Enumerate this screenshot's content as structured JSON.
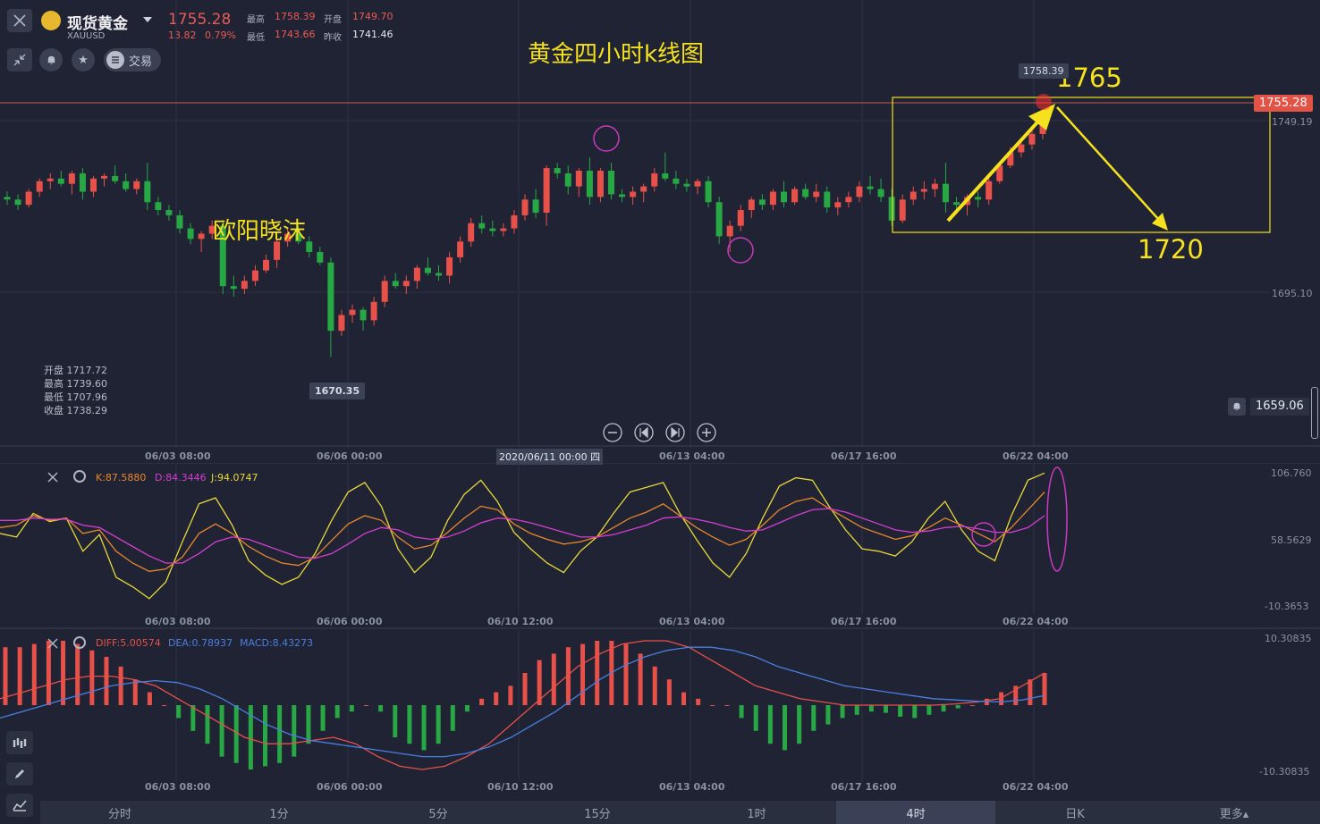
{
  "header": {
    "symbol_name": "现货黄金",
    "symbol_code": "XAUUSD",
    "price": "1755.28",
    "change": "13.82",
    "change_pct": "0.79%",
    "high_label": "最高",
    "high": "1758.39",
    "open_label": "开盘",
    "open": "1749.70",
    "low_label": "最低",
    "low": "1743.66",
    "prev_close_label": "昨收",
    "prev_close": "1741.46",
    "trade_label": "交易"
  },
  "annotations": {
    "title": "黄金四小时k线图",
    "author": "欧阳晓沫",
    "target_up": "1765",
    "target_down": "1720",
    "max_tag": "1758.39",
    "min_tag": "1670.35",
    "price_tag": "1755.28",
    "crosshair_date": "2020/06/11 00:00 四",
    "alert_price": "1659.06"
  },
  "ohlc_panel": {
    "open_label": "开盘",
    "open": "1717.72",
    "high_label": "最高",
    "high": "1739.60",
    "low_label": "最低",
    "low": "1707.96",
    "close_label": "收盘",
    "close": "1738.29"
  },
  "main_axis": {
    "ticks": [
      "1749.19",
      "1695.10"
    ]
  },
  "x_ticks_main": [
    "06/03 08:00",
    "06/06 00:00",
    "06/13 04:00",
    "06/17 16:00",
    "06/22 04:00"
  ],
  "x_ticks_sub": [
    "06/03 08:00",
    "06/06 00:00",
    "06/10 12:00",
    "06/13 04:00",
    "06/17 16:00",
    "06/22 04:00"
  ],
  "kdj": {
    "k_label": "K:87.5880",
    "d_label": "D:84.3446",
    "j_label": "J:94.0747",
    "axis": [
      "106.760",
      "58.5629",
      "-10.3653"
    ]
  },
  "macd": {
    "diff_label": "DIFF:5.00574",
    "dea_label": "DEA:0.78937",
    "macd_label": "MACD:8.43273",
    "axis": [
      "10.30835",
      "-10.30835"
    ]
  },
  "timeframes": [
    "分时",
    "1分",
    "5分",
    "15分",
    "1时",
    "4时",
    "日K",
    "更多▴"
  ],
  "active_timeframe": "4时",
  "colors": {
    "up": "#e8504a",
    "down": "#27a845",
    "bg": "#1f2333",
    "annotation": "#f5e11e",
    "circle": "#c83ac0",
    "k": "#e8872e",
    "d": "#d53fd0",
    "j": "#e8d83a",
    "diff": "#e8504a",
    "dea": "#4a7fe0"
  },
  "chart_data": {
    "type": "candlestick",
    "ylim": [
      1659,
      1768
    ],
    "candles": [
      [
        1727,
        1729,
        1724,
        1726
      ],
      [
        1726,
        1728,
        1722,
        1724
      ],
      [
        1724,
        1730,
        1723,
        1729
      ],
      [
        1729,
        1734,
        1727,
        1733
      ],
      [
        1733,
        1736,
        1730,
        1734
      ],
      [
        1734,
        1737,
        1731,
        1732
      ],
      [
        1732,
        1737,
        1728,
        1736
      ],
      [
        1736,
        1738,
        1726,
        1729
      ],
      [
        1729,
        1735,
        1727,
        1734
      ],
      [
        1734,
        1736,
        1731,
        1735
      ],
      [
        1735,
        1739,
        1732,
        1733
      ],
      [
        1733,
        1736,
        1729,
        1730
      ],
      [
        1730,
        1734,
        1728,
        1733
      ],
      [
        1733,
        1740,
        1722,
        1725
      ],
      [
        1725,
        1727,
        1720,
        1722
      ],
      [
        1722,
        1724,
        1718,
        1720
      ],
      [
        1720,
        1722,
        1713,
        1715
      ],
      [
        1715,
        1717,
        1709,
        1711
      ],
      [
        1711,
        1714,
        1706,
        1713
      ],
      [
        1713,
        1718,
        1711,
        1716
      ],
      [
        1716,
        1718,
        1690,
        1693
      ],
      [
        1693,
        1697,
        1689,
        1692
      ],
      [
        1692,
        1697,
        1690,
        1695
      ],
      [
        1695,
        1701,
        1693,
        1699
      ],
      [
        1699,
        1705,
        1698,
        1703
      ],
      [
        1703,
        1712,
        1700,
        1710
      ],
      [
        1710,
        1715,
        1708,
        1713
      ],
      [
        1713,
        1716,
        1709,
        1710
      ],
      [
        1710,
        1712,
        1704,
        1706
      ],
      [
        1706,
        1708,
        1701,
        1702
      ],
      [
        1702,
        1704,
        1666,
        1676
      ],
      [
        1676,
        1684,
        1674,
        1682
      ],
      [
        1682,
        1686,
        1679,
        1684
      ],
      [
        1684,
        1685,
        1676,
        1680
      ],
      [
        1680,
        1689,
        1678,
        1687
      ],
      [
        1687,
        1697,
        1685,
        1695
      ],
      [
        1695,
        1698,
        1692,
        1693
      ],
      [
        1693,
        1697,
        1690,
        1695
      ],
      [
        1695,
        1701,
        1692,
        1700
      ],
      [
        1700,
        1704,
        1697,
        1698
      ],
      [
        1698,
        1701,
        1695,
        1697
      ],
      [
        1697,
        1706,
        1694,
        1704
      ],
      [
        1704,
        1712,
        1702,
        1710
      ],
      [
        1710,
        1719,
        1708,
        1717
      ],
      [
        1717,
        1720,
        1713,
        1715
      ],
      [
        1715,
        1718,
        1712,
        1714
      ],
      [
        1714,
        1717,
        1712,
        1715
      ],
      [
        1715,
        1722,
        1713,
        1720
      ],
      [
        1720,
        1728,
        1718,
        1726
      ],
      [
        1726,
        1730,
        1719,
        1721
      ],
      [
        1721,
        1739,
        1716,
        1738
      ],
      [
        1738,
        1740,
        1734,
        1736
      ],
      [
        1736,
        1739,
        1728,
        1731
      ],
      [
        1731,
        1738,
        1727,
        1737
      ],
      [
        1737,
        1742,
        1724,
        1727
      ],
      [
        1727,
        1738,
        1725,
        1737
      ],
      [
        1737,
        1740,
        1726,
        1728
      ],
      [
        1728,
        1730,
        1725,
        1727
      ],
      [
        1727,
        1731,
        1724,
        1729
      ],
      [
        1729,
        1732,
        1725,
        1731
      ],
      [
        1731,
        1738,
        1729,
        1736
      ],
      [
        1736,
        1744,
        1733,
        1734
      ],
      [
        1734,
        1737,
        1730,
        1732
      ],
      [
        1732,
        1734,
        1729,
        1731
      ],
      [
        1731,
        1734,
        1728,
        1733
      ],
      [
        1733,
        1735,
        1723,
        1725
      ],
      [
        1725,
        1727,
        1709,
        1712
      ],
      [
        1712,
        1718,
        1706,
        1716
      ],
      [
        1716,
        1724,
        1714,
        1722
      ],
      [
        1722,
        1727,
        1719,
        1726
      ],
      [
        1726,
        1728,
        1722,
        1724
      ],
      [
        1724,
        1730,
        1722,
        1729
      ],
      [
        1729,
        1733,
        1723,
        1725
      ],
      [
        1725,
        1731,
        1724,
        1730
      ],
      [
        1730,
        1732,
        1726,
        1727
      ],
      [
        1727,
        1732,
        1725,
        1729
      ],
      [
        1729,
        1731,
        1721,
        1723
      ],
      [
        1723,
        1727,
        1720,
        1725
      ],
      [
        1725,
        1729,
        1723,
        1727
      ],
      [
        1727,
        1733,
        1725,
        1731
      ],
      [
        1731,
        1735,
        1728,
        1730
      ],
      [
        1730,
        1734,
        1725,
        1727
      ],
      [
        1727,
        1730,
        1716,
        1718
      ],
      [
        1718,
        1728,
        1717,
        1726
      ],
      [
        1726,
        1731,
        1724,
        1729
      ],
      [
        1729,
        1733,
        1726,
        1730
      ],
      [
        1730,
        1734,
        1727,
        1732
      ],
      [
        1732,
        1740,
        1721,
        1725
      ],
      [
        1725,
        1727,
        1722,
        1724
      ],
      [
        1724,
        1728,
        1720,
        1727
      ],
      [
        1727,
        1729,
        1723,
        1726
      ],
      [
        1726,
        1735,
        1724,
        1733
      ],
      [
        1733,
        1740,
        1732,
        1739
      ],
      [
        1739,
        1746,
        1738,
        1744
      ],
      [
        1744,
        1749,
        1742,
        1747
      ],
      [
        1747,
        1754,
        1745,
        1751
      ],
      [
        1751,
        1758,
        1749,
        1755
      ]
    ],
    "kdj": {
      "k": [
        60,
        62,
        70,
        66,
        68,
        55,
        58,
        40,
        30,
        23,
        25,
        35,
        55,
        63,
        55,
        44,
        36,
        30,
        28,
        35,
        49,
        63,
        70,
        66,
        52,
        42,
        45,
        56,
        68,
        78,
        75,
        63,
        55,
        50,
        46,
        48,
        52,
        60,
        68,
        73,
        80,
        70,
        60,
        52,
        45,
        50,
        62,
        75,
        82,
        85,
        76,
        68,
        60,
        55,
        50,
        53,
        60,
        68,
        62,
        55,
        48,
        60,
        75,
        90
      ],
      "d": [
        66,
        66,
        68,
        67,
        67,
        62,
        60,
        52,
        44,
        36,
        30,
        30,
        38,
        48,
        52,
        50,
        45,
        40,
        35,
        34,
        38,
        46,
        55,
        60,
        58,
        52,
        50,
        52,
        57,
        64,
        68,
        67,
        64,
        60,
        56,
        52,
        52,
        54,
        58,
        62,
        68,
        69,
        67,
        64,
        60,
        57,
        58,
        64,
        70,
        75,
        76,
        73,
        68,
        63,
        58,
        56,
        57,
        60,
        61,
        59,
        56,
        56,
        60,
        70
      ],
      "j": [
        55,
        52,
        72,
        65,
        68,
        40,
        54,
        18,
        10,
        0,
        14,
        48,
        80,
        85,
        62,
        32,
        20,
        12,
        18,
        38,
        66,
        90,
        98,
        78,
        42,
        22,
        35,
        66,
        88,
        100,
        82,
        56,
        42,
        30,
        22,
        40,
        52,
        72,
        90,
        94,
        98,
        72,
        50,
        30,
        18,
        38,
        68,
        95,
        102,
        100,
        78,
        58,
        42,
        40,
        36,
        48,
        68,
        82,
        58,
        40,
        32,
        70,
        100,
        106
      ]
    },
    "macd": {
      "hist": [
        9,
        9,
        9.5,
        10,
        10,
        9.5,
        8.5,
        7.5,
        6,
        4,
        2,
        0,
        -2,
        -4,
        -6,
        -8,
        -9,
        -10,
        -9.5,
        -9,
        -8,
        -6,
        -4,
        -2,
        -1,
        0,
        -1,
        -5,
        -6,
        -7,
        -6,
        -4,
        -1,
        1,
        2,
        3,
        5,
        7,
        8,
        9,
        9.5,
        10,
        10,
        9.5,
        8,
        6,
        4,
        2,
        1,
        0,
        0,
        -2,
        -4,
        -6,
        -7,
        -6,
        -4,
        -3,
        -2,
        -1.5,
        -1,
        -1.2,
        -1.8,
        -2,
        -1.5,
        -1,
        -0.5,
        0,
        1,
        2,
        3,
        4,
        5
      ],
      "diff": [
        1,
        2,
        3,
        4,
        4.5,
        4.5,
        4,
        3,
        1,
        -1,
        -3,
        -5,
        -6,
        -6,
        -5.5,
        -5,
        -6,
        -8,
        -9.5,
        -10,
        -9.5,
        -8,
        -6,
        -3,
        0,
        3,
        6,
        8,
        9.5,
        10,
        10,
        9,
        7,
        5,
        3,
        2,
        1,
        0.5,
        0,
        0,
        0,
        0,
        0,
        0.2,
        0.5,
        1,
        3,
        5
      ],
      "dea": [
        -2,
        -1,
        0,
        1,
        2,
        3,
        3.5,
        3.8,
        3.5,
        2.5,
        1,
        -1,
        -3,
        -4.5,
        -5.5,
        -6,
        -6.5,
        -7,
        -7.5,
        -8,
        -8,
        -7.5,
        -6.5,
        -5,
        -3,
        -1,
        1.5,
        4,
        6,
        7.5,
        8.5,
        9,
        9,
        8.5,
        7.5,
        6,
        5,
        4,
        3,
        2.5,
        2,
        1.5,
        1,
        0.8,
        0.6,
        0.5,
        0.8,
        1.5
      ]
    }
  }
}
